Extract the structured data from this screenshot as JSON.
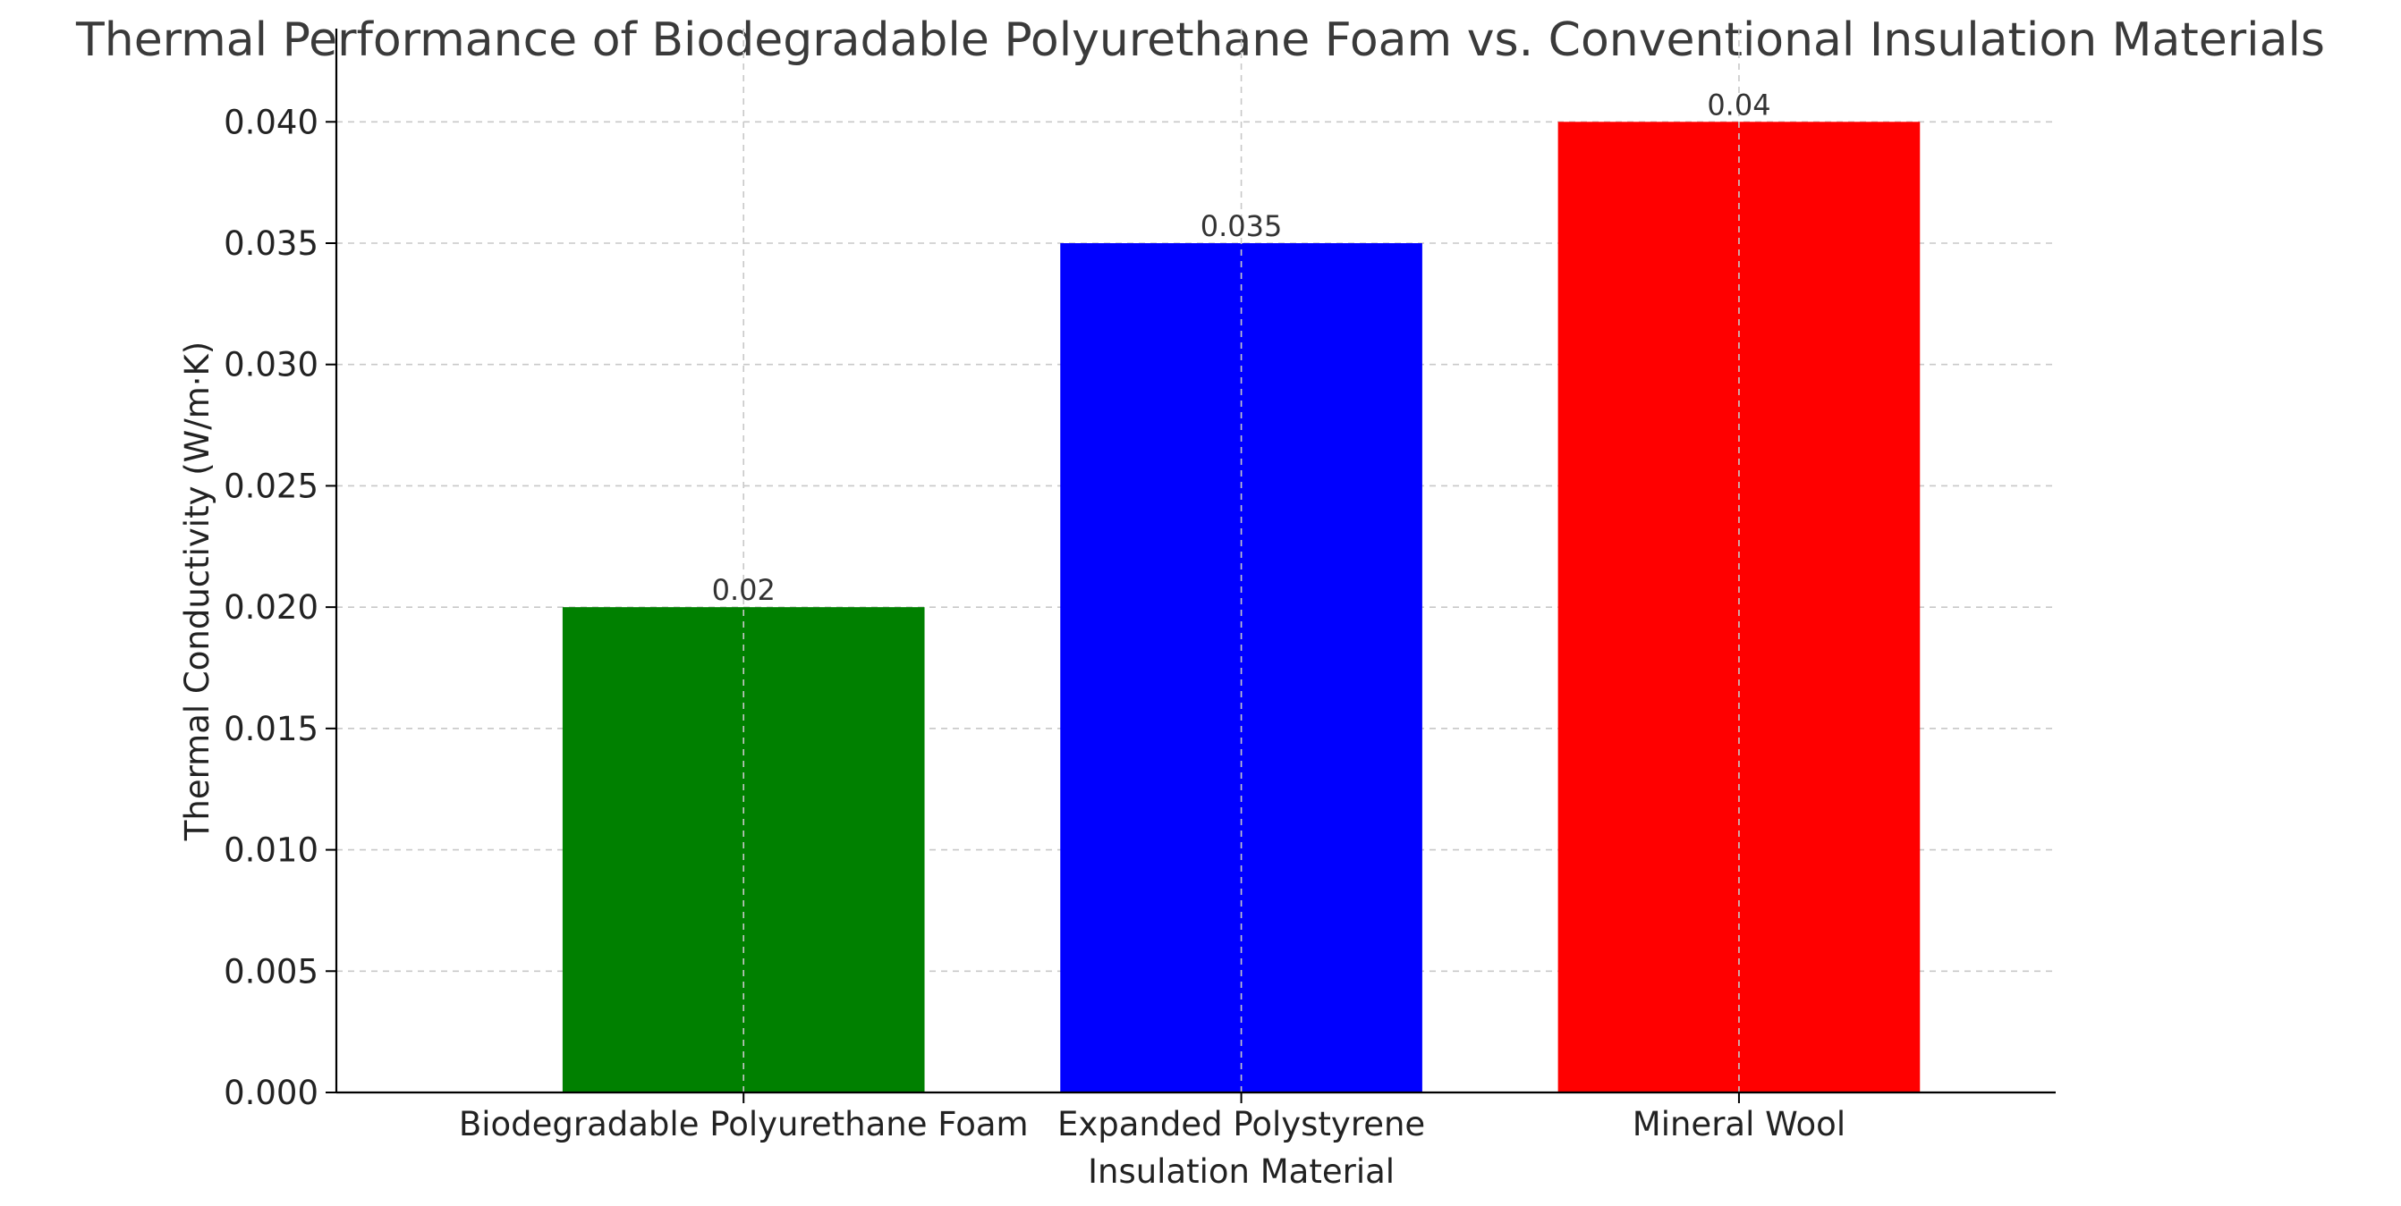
{
  "chart_data": {
    "type": "bar",
    "title": "Thermal Performance of Biodegradable Polyurethane Foam vs. Conventional Insulation Materials",
    "xlabel": "",
    "ylabel": "Thermal Conductivity (W/m·K)",
    "categories": [
      [
        "Biodegradable Polyurethane Foam"
      ],
      [
        "Expanded Polystyrene",
        "Insulation Material"
      ],
      [
        "Mineral Wool"
      ]
    ],
    "values": [
      0.02,
      0.035,
      0.04
    ],
    "data_labels": [
      "0.02",
      "0.035",
      "0.04"
    ],
    "colors": [
      "#008000",
      "#0000ff",
      "#ff0000"
    ],
    "ylim": [
      0,
      0.042
    ],
    "yticks": [
      0.0,
      0.005,
      0.01,
      0.015,
      0.02,
      0.025,
      0.03,
      0.035,
      0.04
    ],
    "ytick_labels": [
      "0.000",
      "0.005",
      "0.010",
      "0.015",
      "0.020",
      "0.025",
      "0.030",
      "0.035",
      "0.040"
    ],
    "grid": true,
    "legend": "none"
  }
}
